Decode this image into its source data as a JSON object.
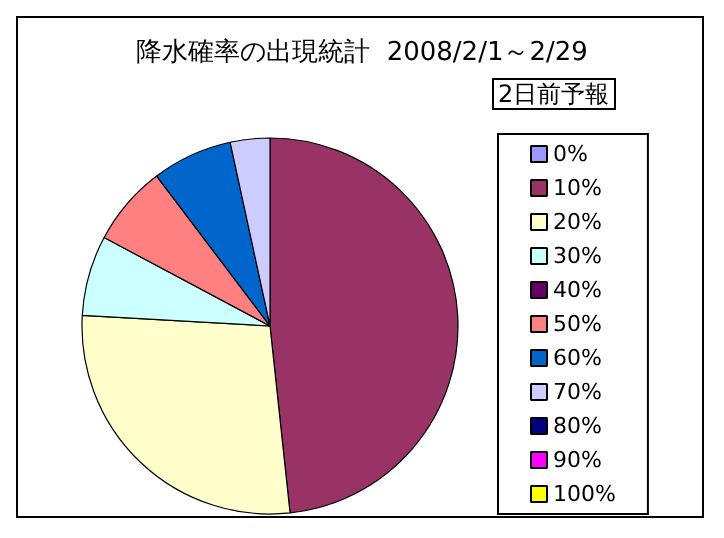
{
  "chart_data": {
    "type": "pie",
    "title": "降水確率の出現統計  2008/2/1～2/29",
    "legend_title": "2日前予報",
    "categories": [
      "0%",
      "10%",
      "20%",
      "30%",
      "40%",
      "50%",
      "60%",
      "70%",
      "80%",
      "90%",
      "100%"
    ],
    "values": [
      0,
      48.3,
      27.6,
      6.9,
      0,
      6.9,
      6.9,
      3.4,
      0,
      0,
      0
    ],
    "colors": [
      "#9999ff",
      "#993366",
      "#ffffcc",
      "#ccffff",
      "#660066",
      "#ff8080",
      "#0066cc",
      "#ccccff",
      "#000080",
      "#ff00ff",
      "#ffff00"
    ],
    "legend": "right"
  }
}
